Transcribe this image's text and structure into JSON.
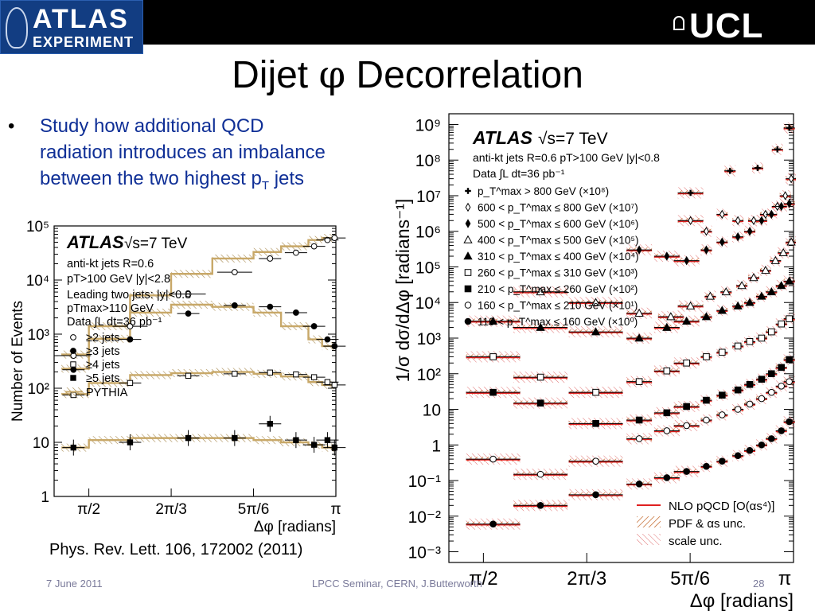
{
  "header": {
    "logo_line1": "ATLAS",
    "logo_line2": "EXPERIMENT",
    "institution": "UCL"
  },
  "slide": {
    "title_pre": "Dijet ",
    "title_symbol": "φ",
    "title_post": " Decorrelation",
    "bullet_part1": "Study how additional QCD radiation introduces an imbalance between the two highest p",
    "bullet_sub": "T",
    "bullet_part2": " jets",
    "reference": "Phys. Rev. Lett. 106, 172002 (2011)"
  },
  "footer": {
    "date": "7 June 2011",
    "event": "LPCC Seminar, CERN, J.Butterworth",
    "page": "28"
  },
  "colors": {
    "bullet_text": "#0f2f96",
    "nlo": "#e02020",
    "pythia_band": "#c8a868"
  },
  "chart_data": [
    {
      "type": "line",
      "ylabel": "Number of Events",
      "xlabel": "Δφ [radians]",
      "xticks": [
        "π/2",
        "2π/3",
        "5π/6",
        "π"
      ],
      "yticks": [
        "1",
        "10",
        "10²",
        "10³",
        "10⁴",
        "10⁵"
      ],
      "ylim": [
        1,
        100000
      ],
      "xlim": [
        1.35,
        3.1416
      ],
      "yscale": "log",
      "atlas_label": "ATLAS",
      "energy": "√s=7 TeV",
      "annotations": [
        "anti-kt jets R=0.6",
        "pT>100 GeV  |y|<2.8",
        "Leading two jets: |y|<0.8",
        "pTmax>110 GeV",
        "Data ∫L dt=36 pb⁻¹"
      ],
      "legend": [
        "≥2 jets",
        "≥3 jets",
        "≥4 jets",
        "≥5 jets",
        "PYTHIA"
      ],
      "x": [
        1.473,
        1.833,
        2.203,
        2.498,
        2.723,
        2.888,
        3.003,
        3.088,
        3.133
      ],
      "series": [
        {
          "name": "≥2 jets",
          "values": [
            400,
            1400,
            5500,
            14000,
            25000,
            32000,
            42000,
            55000,
            60000
          ]
        },
        {
          "name": "≥3 jets",
          "values": [
            220,
            800,
            2400,
            3400,
            3200,
            2500,
            1400,
            800,
            600
          ]
        },
        {
          "name": "≥4 jets",
          "values": [
            75,
            125,
            170,
            185,
            195,
            180,
            160,
            130,
            115
          ]
        },
        {
          "name": "≥5 jets",
          "values": [
            8,
            10,
            12,
            12,
            22,
            11,
            9,
            11,
            8
          ]
        }
      ],
      "pythia": [
        {
          "edges": [
            1.396,
            1.571,
            1.833,
            2.094,
            2.356,
            2.618,
            2.793,
            2.967,
            3.054,
            3.1416
          ],
          "values": [
            420,
            1400,
            5200,
            13000,
            25000,
            33000,
            42000,
            55000,
            60000
          ]
        },
        {
          "edges": [
            1.396,
            1.571,
            1.833,
            2.094,
            2.356,
            2.618,
            2.793,
            2.967,
            3.054,
            3.1416
          ],
          "values": [
            230,
            820,
            2500,
            3500,
            3200,
            2500,
            1400,
            800,
            600
          ]
        },
        {
          "edges": [
            1.396,
            1.571,
            1.833,
            2.094,
            2.356,
            2.618,
            2.793,
            2.967,
            3.054,
            3.1416
          ],
          "values": [
            78,
            125,
            175,
            190,
            200,
            185,
            165,
            130,
            115
          ]
        },
        {
          "edges": [
            1.396,
            1.571,
            1.833,
            2.094,
            2.356,
            2.618,
            2.793,
            2.967,
            3.054,
            3.1416
          ],
          "values": [
            8,
            11,
            12,
            12,
            12,
            11,
            10,
            9,
            8
          ]
        }
      ]
    },
    {
      "type": "scatter",
      "ylabel": "1/σ dσ/dΔφ [radians⁻¹]",
      "xlabel": "Δφ [radians]",
      "xticks": [
        "π/2",
        "2π/3",
        "5π/6",
        "π"
      ],
      "yticks": [
        "10⁻³",
        "10⁻²",
        "10⁻¹",
        "1",
        "10",
        "10²",
        "10³",
        "10⁴",
        "10⁵",
        "10⁶",
        "10⁷",
        "10⁸",
        "10⁹"
      ],
      "ylim": [
        0.0005,
        2000000000
      ],
      "xlim": [
        1.396,
        3.1416
      ],
      "yscale": "log",
      "atlas_label": "ATLAS",
      "energy": "√s=7 TeV",
      "annotations": [
        "anti-kt jets R=0.6  pT>100 GeV  |y|<0.8",
        "Data ∫L dt=36 pb⁻¹"
      ],
      "legend_bottom": [
        "NLO pQCD [O(αs⁴)]",
        "PDF & αs unc.",
        "scale unc."
      ],
      "series": [
        {
          "name": "p_T^max > 800 GeV (×10⁸)",
          "marker": "cross",
          "x": [
            1.62,
            2.02,
            2.36,
            2.62,
            2.82,
            2.96,
            3.06,
            3.12
          ],
          "values": [
            null,
            null,
            null,
            12000000,
            50000000,
            60000000,
            200000000,
            800000000
          ]
        },
        {
          "name": "600 < p_T^max ≤ 800 GeV (×10⁷)",
          "marker": "diamond-open",
          "x": [
            1.62,
            2.02,
            2.36,
            2.62,
            2.7,
            2.78,
            2.86,
            2.94,
            3.0,
            3.06,
            3.1,
            3.13
          ],
          "values": [
            null,
            null,
            null,
            2000000,
            1000000,
            3000000,
            2000000,
            2000000,
            3000000,
            5000000,
            10000000,
            30000000
          ]
        },
        {
          "name": "500 < p_T^max ≤ 600 GeV (×10⁶)",
          "marker": "diamond-filled",
          "x": [
            1.86,
            2.14,
            2.36,
            2.5,
            2.6,
            2.7,
            2.78,
            2.86,
            2.92,
            2.98,
            3.03,
            3.08,
            3.12
          ],
          "values": [
            null,
            null,
            300000,
            200000,
            150000,
            300000,
            500000,
            700000,
            1000000,
            2000000,
            3000000,
            5000000,
            6000000
          ]
        },
        {
          "name": "400 < p_T^max ≤ 500 GeV (×10⁵)",
          "marker": "triangle-open",
          "x": [
            1.86,
            2.14,
            2.36,
            2.52,
            2.62,
            2.72,
            2.8,
            2.88,
            2.94,
            3.0,
            3.05,
            3.09,
            3.13
          ],
          "values": [
            20000,
            10000,
            5000,
            4000,
            8000,
            15000,
            20000,
            30000,
            50000,
            80000,
            150000,
            250000,
            500000
          ]
        },
        {
          "name": "310 < p_T^max ≤ 400 GeV (×10⁴)",
          "marker": "triangle-filled",
          "x": [
            1.62,
            1.86,
            2.14,
            2.36,
            2.5,
            2.6,
            2.7,
            2.78,
            2.86,
            2.92,
            2.98,
            3.03,
            3.08,
            3.12
          ],
          "values": [
            3000,
            2000,
            1500,
            1000,
            2000,
            3000,
            4000,
            6000,
            8000,
            10000,
            15000,
            20000,
            30000,
            40000
          ]
        },
        {
          "name": "260 < p_T^max ≤ 310 GeV (×10³)",
          "marker": "square-open",
          "x": [
            1.62,
            1.86,
            2.14,
            2.36,
            2.5,
            2.6,
            2.7,
            2.78,
            2.86,
            2.92,
            2.98,
            3.03,
            3.08,
            3.12
          ],
          "values": [
            300,
            80,
            30,
            60,
            120,
            200,
            300,
            400,
            600,
            800,
            1000,
            1500,
            2500,
            3500
          ]
        },
        {
          "name": "210 < p_T^max ≤ 260 GeV (×10²)",
          "marker": "square-filled",
          "x": [
            1.62,
            1.86,
            2.14,
            2.36,
            2.5,
            2.6,
            2.7,
            2.78,
            2.86,
            2.92,
            2.98,
            3.03,
            3.08,
            3.12
          ],
          "values": [
            30,
            15,
            4,
            5,
            8,
            12,
            18,
            25,
            35,
            50,
            70,
            100,
            150,
            250
          ]
        },
        {
          "name": "160 < p_T^max ≤ 210 GeV (×10¹)",
          "marker": "circle-open",
          "x": [
            1.62,
            1.86,
            2.14,
            2.36,
            2.5,
            2.6,
            2.7,
            2.78,
            2.86,
            2.92,
            2.98,
            3.03,
            3.08,
            3.12
          ],
          "values": [
            0.4,
            0.15,
            0.35,
            1.5,
            2.5,
            3.5,
            5,
            7,
            10,
            14,
            20,
            30,
            45,
            60
          ]
        },
        {
          "name": "110 < p_T^max ≤ 160 GeV (×10⁰)",
          "marker": "circle-filled",
          "x": [
            1.62,
            1.86,
            2.14,
            2.36,
            2.5,
            2.6,
            2.7,
            2.78,
            2.86,
            2.92,
            2.98,
            3.03,
            3.08,
            3.12
          ],
          "values": [
            0.006,
            0.02,
            0.04,
            0.08,
            0.12,
            0.18,
            0.25,
            0.35,
            0.5,
            0.7,
            1.0,
            1.5,
            2.5,
            4.5
          ]
        }
      ]
    }
  ]
}
